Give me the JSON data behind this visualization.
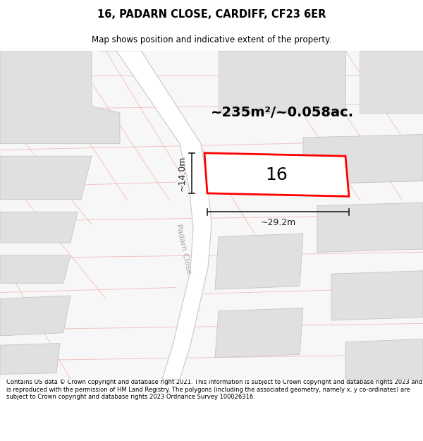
{
  "title": "16, PADARN CLOSE, CARDIFF, CF23 6ER",
  "subtitle": "Map shows position and indicative extent of the property.",
  "footer": "Contains OS data © Crown copyright and database right 2021. This information is subject to Crown copyright and database rights 2023 and is reproduced with the permission of HM Land Registry. The polygons (including the associated geometry, namely x, y co-ordinates) are subject to Crown copyright and database rights 2023 Ordnance Survey 100026316.",
  "map_bg": "#f7f7f7",
  "road_color": "#ffffff",
  "road_edge_color": "#c8c8c8",
  "road_line_color": "#f0a0a0",
  "building_color": "#e0e0e0",
  "building_edge": "#c0c0c0",
  "highlight_color": "#ff0000",
  "dim_color": "#222222",
  "area_text": "~235m²/~0.058ac.",
  "width_text": "~29.2m",
  "height_text": "~14.0m",
  "number_text": "16",
  "road_label": "Padarn Close"
}
